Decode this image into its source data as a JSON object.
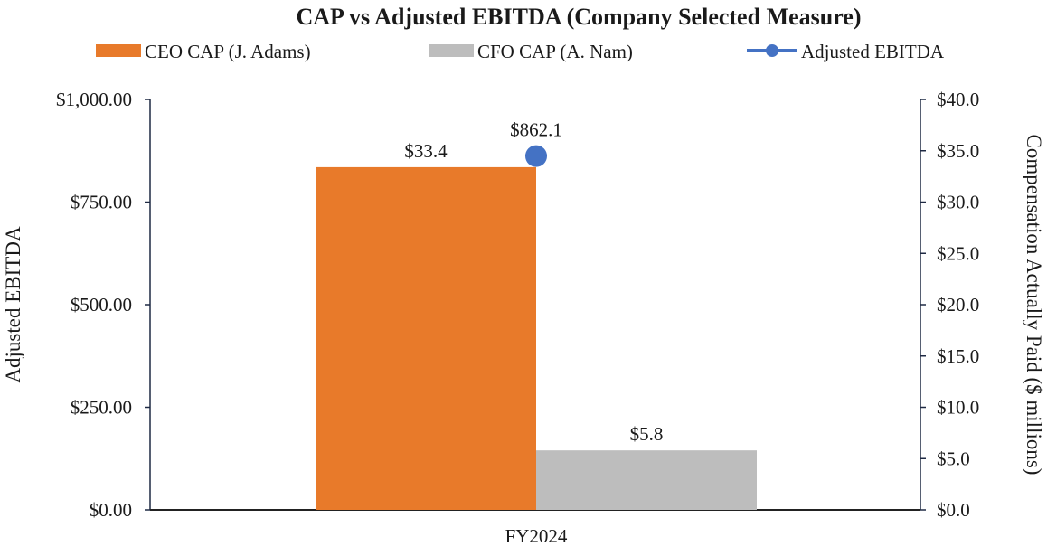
{
  "chart_data": {
    "type": "bar",
    "title": "CAP vs Adjusted EBITDA (Company Selected Measure)",
    "categories": [
      "FY2024"
    ],
    "series": [
      {
        "name": "CEO CAP (J. Adams)",
        "kind": "bar",
        "axis": "right",
        "color": "#E87A2A",
        "values": [
          33.4
        ],
        "labels": [
          "$33.4"
        ]
      },
      {
        "name": "CFO CAP (A. Nam)",
        "kind": "bar",
        "axis": "right",
        "color": "#BDBDBD",
        "values": [
          5.8
        ],
        "labels": [
          "$5.8"
        ]
      },
      {
        "name": "Adjusted EBITDA",
        "kind": "line",
        "axis": "left",
        "color": "#4472C4",
        "values": [
          862.1
        ],
        "labels": [
          "$862.1"
        ]
      }
    ],
    "left_axis": {
      "label": "Adjusted EBITDA",
      "range": [
        0,
        1000
      ],
      "ticks": [
        0,
        250,
        500,
        750,
        1000
      ],
      "tick_labels": [
        "$0.00",
        "$250.00",
        "$500.00",
        "$750.00",
        "$1,000.00"
      ]
    },
    "right_axis": {
      "label": "Compensation Actually Paid ($ millions)",
      "range": [
        0,
        40
      ],
      "ticks": [
        0,
        5,
        10,
        15,
        20,
        25,
        30,
        35,
        40
      ],
      "tick_labels": [
        "$0.0",
        "$5.0",
        "$10.0",
        "$15.0",
        "$20.0",
        "$25.0",
        "$30.0",
        "$35.0",
        "$40.0"
      ]
    },
    "legend_position": "top",
    "grid": false
  }
}
